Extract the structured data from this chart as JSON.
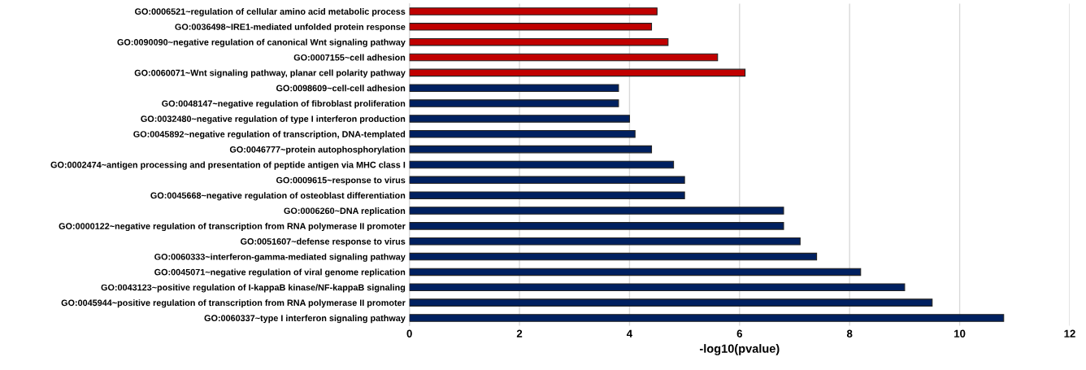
{
  "chart_data": {
    "type": "bar",
    "orientation": "horizontal",
    "xlabel": "-log10(pvalue)",
    "categories": [
      "GO:0006521~regulation of cellular amino acid metabolic process",
      "GO:0036498~IRE1-mediated unfolded protein response",
      "GO:0090090~negative regulation of canonical Wnt signaling pathway",
      "GO:0007155~cell adhesion",
      "GO:0060071~Wnt signaling pathway, planar cell polarity pathway",
      "GO:0098609~cell-cell adhesion",
      "GO:0048147~negative regulation of fibroblast proliferation",
      "GO:0032480~negative regulation of type I interferon production",
      "GO:0045892~negative regulation of transcription, DNA-templated",
      "GO:0046777~protein autophosphorylation",
      "GO:0002474~antigen processing and presentation of peptide antigen via MHC class I",
      "GO:0009615~response to virus",
      "GO:0045668~negative regulation of osteoblast differentiation",
      "GO:0006260~DNA replication",
      "GO:0000122~negative regulation of transcription from RNA polymerase II promoter",
      "GO:0051607~defense response to virus",
      "GO:0060333~interferon-gamma-mediated signaling pathway",
      "GO:0045071~negative regulation of viral genome replication",
      "GO:0043123~positive regulation of I-kappaB kinase/NF-kappaB signaling",
      "GO:0045944~positive regulation of transcription from RNA polymerase II promoter",
      "GO:0060337~type I interferon signaling pathway"
    ],
    "values": [
      4.5,
      4.4,
      4.7,
      5.6,
      6.1,
      3.8,
      3.8,
      4.0,
      4.1,
      4.4,
      4.8,
      5.0,
      5.0,
      6.8,
      6.8,
      7.1,
      7.4,
      8.2,
      9.0,
      9.5,
      10.8
    ],
    "colors": [
      "#c00000",
      "#c00000",
      "#c00000",
      "#c00000",
      "#c00000",
      "#002060",
      "#002060",
      "#002060",
      "#002060",
      "#002060",
      "#002060",
      "#002060",
      "#002060",
      "#002060",
      "#002060",
      "#002060",
      "#002060",
      "#002060",
      "#002060",
      "#002060",
      "#002060"
    ],
    "xlim": [
      0,
      12
    ],
    "xticks": [
      0,
      2,
      4,
      6,
      8,
      10,
      12
    ],
    "grid": "x"
  }
}
